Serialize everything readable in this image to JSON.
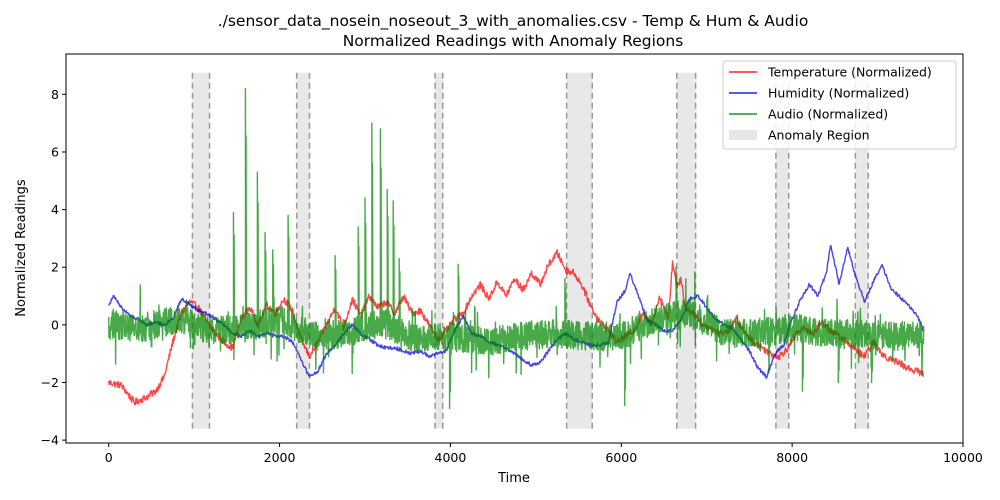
{
  "chart_data": {
    "type": "line",
    "title_line1": "./sensor_data_nosein_noseout_3_with_anomalies.csv - Temp & Hum & Audio",
    "title_line2": "Normalized Readings with Anomaly Regions",
    "xlabel": "Time",
    "ylabel": "Normalized Readings",
    "xlim": [
      -500,
      10000
    ],
    "ylim": [
      -4.1,
      9.4
    ],
    "xticks": [
      0,
      2000,
      4000,
      6000,
      8000,
      10000
    ],
    "yticks": [
      -4,
      -2,
      0,
      2,
      4,
      6,
      8
    ],
    "grid": false,
    "legend_position": "top-right",
    "anomaly_regions": [
      [
        980,
        1180
      ],
      [
        2200,
        2350
      ],
      [
        3820,
        3910
      ],
      [
        5360,
        5660
      ],
      [
        6650,
        6870
      ],
      [
        7810,
        7960
      ],
      [
        8740,
        8890
      ]
    ],
    "anomaly_label": "Anomaly Region",
    "anomaly_color": "#e6e6e6",
    "series": [
      {
        "name": "Temperature (Normalized)",
        "color": "#ff0000",
        "noise": 0.12,
        "points": [
          [
            0,
            -2.0
          ],
          [
            150,
            -2.1
          ],
          [
            300,
            -2.7
          ],
          [
            450,
            -2.5
          ],
          [
            550,
            -2.3
          ],
          [
            650,
            -1.8
          ],
          [
            750,
            -0.6
          ],
          [
            850,
            0.4
          ],
          [
            950,
            0.8
          ],
          [
            1050,
            0.6
          ],
          [
            1150,
            0.1
          ],
          [
            1250,
            -0.3
          ],
          [
            1350,
            -0.6
          ],
          [
            1450,
            -0.8
          ],
          [
            1550,
            0.2
          ],
          [
            1650,
            0.6
          ],
          [
            1750,
            0.0
          ],
          [
            1850,
            0.7
          ],
          [
            1950,
            0.4
          ],
          [
            2050,
            0.9
          ],
          [
            2150,
            0.5
          ],
          [
            2250,
            -0.5
          ],
          [
            2350,
            -1.1
          ],
          [
            2450,
            -0.6
          ],
          [
            2550,
            0.0
          ],
          [
            2650,
            0.6
          ],
          [
            2750,
            -0.1
          ],
          [
            2850,
            0.9
          ],
          [
            2950,
            0.3
          ],
          [
            3050,
            1.0
          ],
          [
            3150,
            0.6
          ],
          [
            3250,
            0.8
          ],
          [
            3350,
            0.4
          ],
          [
            3450,
            1.0
          ],
          [
            3550,
            0.4
          ],
          [
            3650,
            0.5
          ],
          [
            3750,
            0.0
          ],
          [
            3850,
            -0.5
          ],
          [
            3950,
            -0.2
          ],
          [
            4050,
            0.2
          ],
          [
            4150,
            0.4
          ],
          [
            4250,
            1.0
          ],
          [
            4350,
            1.4
          ],
          [
            4450,
            0.9
          ],
          [
            4550,
            1.5
          ],
          [
            4650,
            1.0
          ],
          [
            4750,
            1.6
          ],
          [
            4850,
            1.2
          ],
          [
            4950,
            1.8
          ],
          [
            5050,
            1.4
          ],
          [
            5150,
            2.1
          ],
          [
            5250,
            2.5
          ],
          [
            5350,
            1.9
          ],
          [
            5450,
            1.8
          ],
          [
            5550,
            1.3
          ],
          [
            5650,
            0.6
          ],
          [
            5750,
            0.1
          ],
          [
            5850,
            -0.2
          ],
          [
            5950,
            -0.6
          ],
          [
            6050,
            -0.4
          ],
          [
            6150,
            -0.2
          ],
          [
            6250,
            0.4
          ],
          [
            6350,
            0.0
          ],
          [
            6450,
            1.0
          ],
          [
            6550,
            0.2
          ],
          [
            6600,
            2.2
          ],
          [
            6650,
            1.3
          ],
          [
            6700,
            1.6
          ],
          [
            6750,
            0.6
          ],
          [
            6850,
            0.4
          ],
          [
            6950,
            0.0
          ],
          [
            7050,
            -0.1
          ],
          [
            7150,
            -0.3
          ],
          [
            7250,
            -0.2
          ],
          [
            7350,
            0.2
          ],
          [
            7450,
            -0.3
          ],
          [
            7550,
            -0.6
          ],
          [
            7650,
            -0.8
          ],
          [
            7750,
            -1.0
          ],
          [
            7850,
            -1.1
          ],
          [
            7950,
            -0.8
          ],
          [
            8050,
            -0.3
          ],
          [
            8150,
            -0.1
          ],
          [
            8250,
            -0.3
          ],
          [
            8350,
            0.1
          ],
          [
            8450,
            -0.2
          ],
          [
            8550,
            -0.4
          ],
          [
            8650,
            -0.6
          ],
          [
            8750,
            -0.9
          ],
          [
            8850,
            -1.1
          ],
          [
            8950,
            -0.6
          ],
          [
            9050,
            -1.0
          ],
          [
            9150,
            -1.2
          ],
          [
            9250,
            -1.3
          ],
          [
            9350,
            -1.5
          ],
          [
            9450,
            -1.6
          ],
          [
            9540,
            -1.7
          ]
        ]
      },
      {
        "name": "Humidity (Normalized)",
        "color": "#0000dd",
        "noise": 0.06,
        "points": [
          [
            0,
            0.7
          ],
          [
            60,
            1.0
          ],
          [
            150,
            0.6
          ],
          [
            250,
            0.3
          ],
          [
            350,
            0.2
          ],
          [
            450,
            0.0
          ],
          [
            550,
            0.1
          ],
          [
            650,
            0.0
          ],
          [
            750,
            0.2
          ],
          [
            850,
            0.9
          ],
          [
            950,
            0.7
          ],
          [
            1050,
            0.5
          ],
          [
            1150,
            0.4
          ],
          [
            1250,
            0.2
          ],
          [
            1350,
            0.0
          ],
          [
            1450,
            -0.3
          ],
          [
            1550,
            -0.4
          ],
          [
            1650,
            -0.2
          ],
          [
            1750,
            -0.4
          ],
          [
            1850,
            -0.3
          ],
          [
            1950,
            -0.4
          ],
          [
            2050,
            -0.4
          ],
          [
            2150,
            -0.6
          ],
          [
            2250,
            -1.2
          ],
          [
            2350,
            -1.8
          ],
          [
            2450,
            -1.6
          ],
          [
            2550,
            -1.0
          ],
          [
            2650,
            -0.7
          ],
          [
            2750,
            -0.3
          ],
          [
            2850,
            0.0
          ],
          [
            2950,
            -0.3
          ],
          [
            3050,
            -0.5
          ],
          [
            3150,
            -0.7
          ],
          [
            3250,
            -0.8
          ],
          [
            3350,
            -0.8
          ],
          [
            3450,
            -0.9
          ],
          [
            3550,
            -1.0
          ],
          [
            3650,
            -0.9
          ],
          [
            3750,
            -1.1
          ],
          [
            3850,
            -1.0
          ],
          [
            3950,
            -0.9
          ],
          [
            4050,
            -0.2
          ],
          [
            4150,
            0.3
          ],
          [
            4250,
            -0.3
          ],
          [
            4350,
            -0.4
          ],
          [
            4450,
            -0.6
          ],
          [
            4550,
            -0.7
          ],
          [
            4650,
            -0.8
          ],
          [
            4750,
            -1.0
          ],
          [
            4850,
            -1.2
          ],
          [
            4950,
            -1.4
          ],
          [
            5050,
            -1.3
          ],
          [
            5150,
            -0.9
          ],
          [
            5250,
            -0.5
          ],
          [
            5350,
            -0.3
          ],
          [
            5450,
            -0.5
          ],
          [
            5550,
            -0.6
          ],
          [
            5650,
            -0.7
          ],
          [
            5750,
            -0.7
          ],
          [
            5850,
            -0.6
          ],
          [
            5950,
            0.8
          ],
          [
            6050,
            1.2
          ],
          [
            6100,
            1.8
          ],
          [
            6200,
            1.0
          ],
          [
            6300,
            0.2
          ],
          [
            6400,
            0.0
          ],
          [
            6500,
            -0.2
          ],
          [
            6600,
            -0.2
          ],
          [
            6700,
            0.2
          ],
          [
            6800,
            0.9
          ],
          [
            6900,
            1.0
          ],
          [
            7000,
            0.6
          ],
          [
            7100,
            0.2
          ],
          [
            7200,
            0.0
          ],
          [
            7300,
            -0.1
          ],
          [
            7400,
            -0.5
          ],
          [
            7500,
            -0.9
          ],
          [
            7600,
            -1.5
          ],
          [
            7700,
            -1.8
          ],
          [
            7800,
            -1.0
          ],
          [
            7900,
            -0.7
          ],
          [
            8000,
            0.2
          ],
          [
            8100,
            0.9
          ],
          [
            8200,
            1.4
          ],
          [
            8300,
            1.0
          ],
          [
            8400,
            1.8
          ],
          [
            8450,
            2.8
          ],
          [
            8550,
            1.4
          ],
          [
            8650,
            2.7
          ],
          [
            8750,
            1.6
          ],
          [
            8850,
            0.8
          ],
          [
            8950,
            1.5
          ],
          [
            9050,
            2.1
          ],
          [
            9150,
            1.3
          ],
          [
            9250,
            1.0
          ],
          [
            9350,
            0.7
          ],
          [
            9450,
            0.4
          ],
          [
            9540,
            -0.2
          ]
        ]
      },
      {
        "name": "Audio (Normalized)",
        "color": "#008800",
        "noise": 0.5,
        "points": [
          [
            0,
            0.0
          ],
          [
            400,
            -0.1
          ],
          [
            800,
            0.2
          ],
          [
            1200,
            -0.2
          ],
          [
            1600,
            -0.1
          ],
          [
            2000,
            0.2
          ],
          [
            2400,
            -0.4
          ],
          [
            2800,
            -0.3
          ],
          [
            3200,
            0.1
          ],
          [
            3600,
            -0.5
          ],
          [
            4000,
            -0.4
          ],
          [
            4400,
            -0.6
          ],
          [
            4800,
            -0.4
          ],
          [
            5200,
            -0.3
          ],
          [
            5600,
            -0.4
          ],
          [
            6000,
            -0.4
          ],
          [
            6400,
            0.2
          ],
          [
            6800,
            0.4
          ],
          [
            7200,
            -0.3
          ],
          [
            7600,
            -0.3
          ],
          [
            8000,
            -0.1
          ],
          [
            8400,
            -0.3
          ],
          [
            8800,
            -0.3
          ],
          [
            9200,
            -0.4
          ],
          [
            9540,
            -0.3
          ]
        ],
        "spikes": [
          [
            1460,
            3.9
          ],
          [
            1600,
            8.2
          ],
          [
            1740,
            5.3
          ],
          [
            1830,
            3.2
          ],
          [
            1920,
            2.6
          ],
          [
            2100,
            3.8
          ],
          [
            2650,
            2.4
          ],
          [
            2920,
            3.4
          ],
          [
            3000,
            4.4
          ],
          [
            3080,
            7.0
          ],
          [
            3180,
            6.8
          ],
          [
            3260,
            4.7
          ],
          [
            3330,
            4.3
          ],
          [
            3400,
            2.3
          ],
          [
            3990,
            -2.9
          ],
          [
            4090,
            2.1
          ],
          [
            5340,
            1.6
          ],
          [
            6040,
            -2.8
          ],
          [
            6640,
            2.0
          ],
          [
            8120,
            -2.3
          ],
          [
            8540,
            -2.0
          ],
          [
            8930,
            -2.0
          ]
        ]
      }
    ]
  }
}
